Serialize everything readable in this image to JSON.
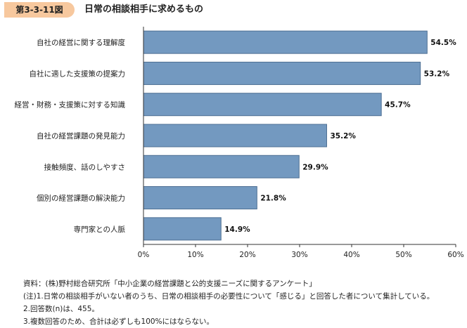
{
  "figure": {
    "number": "第3-3-11図",
    "title": "日常の相談相手に求めるもの"
  },
  "chart_data": {
    "type": "bar",
    "orientation": "horizontal",
    "title": "日常の相談相手に求めるもの",
    "categories": [
      "自社の経営に関する理解度",
      "自社に適した支援策の提案力",
      "経営・財務・支援策に対する知識",
      "自社の経営課題の発見能力",
      "接触頻度、話のしやすさ",
      "個別の経営課題の解決能力",
      "専門家との人脈"
    ],
    "values": [
      54.5,
      53.2,
      45.7,
      35.2,
      29.9,
      21.8,
      14.9
    ],
    "value_labels": [
      "54.5%",
      "53.2%",
      "45.7%",
      "35.2%",
      "29.9%",
      "21.8%",
      "14.9%"
    ],
    "xlim": [
      0,
      60
    ],
    "xticks": [
      0,
      10,
      20,
      30,
      40,
      50,
      60
    ],
    "xtick_labels": [
      "0%",
      "10%",
      "20%",
      "30%",
      "40%",
      "50%",
      "60%"
    ],
    "xlabel": "",
    "ylabel": "",
    "grid": false,
    "bar_color": "#7399c0",
    "bar_edge_color": "#4e6f93"
  },
  "notes": {
    "source": "資料：(株)野村総合研究所「中小企業の経営課題と公的支援ニーズに関するアンケート」",
    "note1": "(注)1.日常の相談相手がいない者のうち、日常の相談相手の必要性について「感じる」と回答した者について集計している。",
    "note2": "2.回答数(n)は、455。",
    "note3": "3.複数回答のため、合計は必ずしも100%にはならない。"
  }
}
